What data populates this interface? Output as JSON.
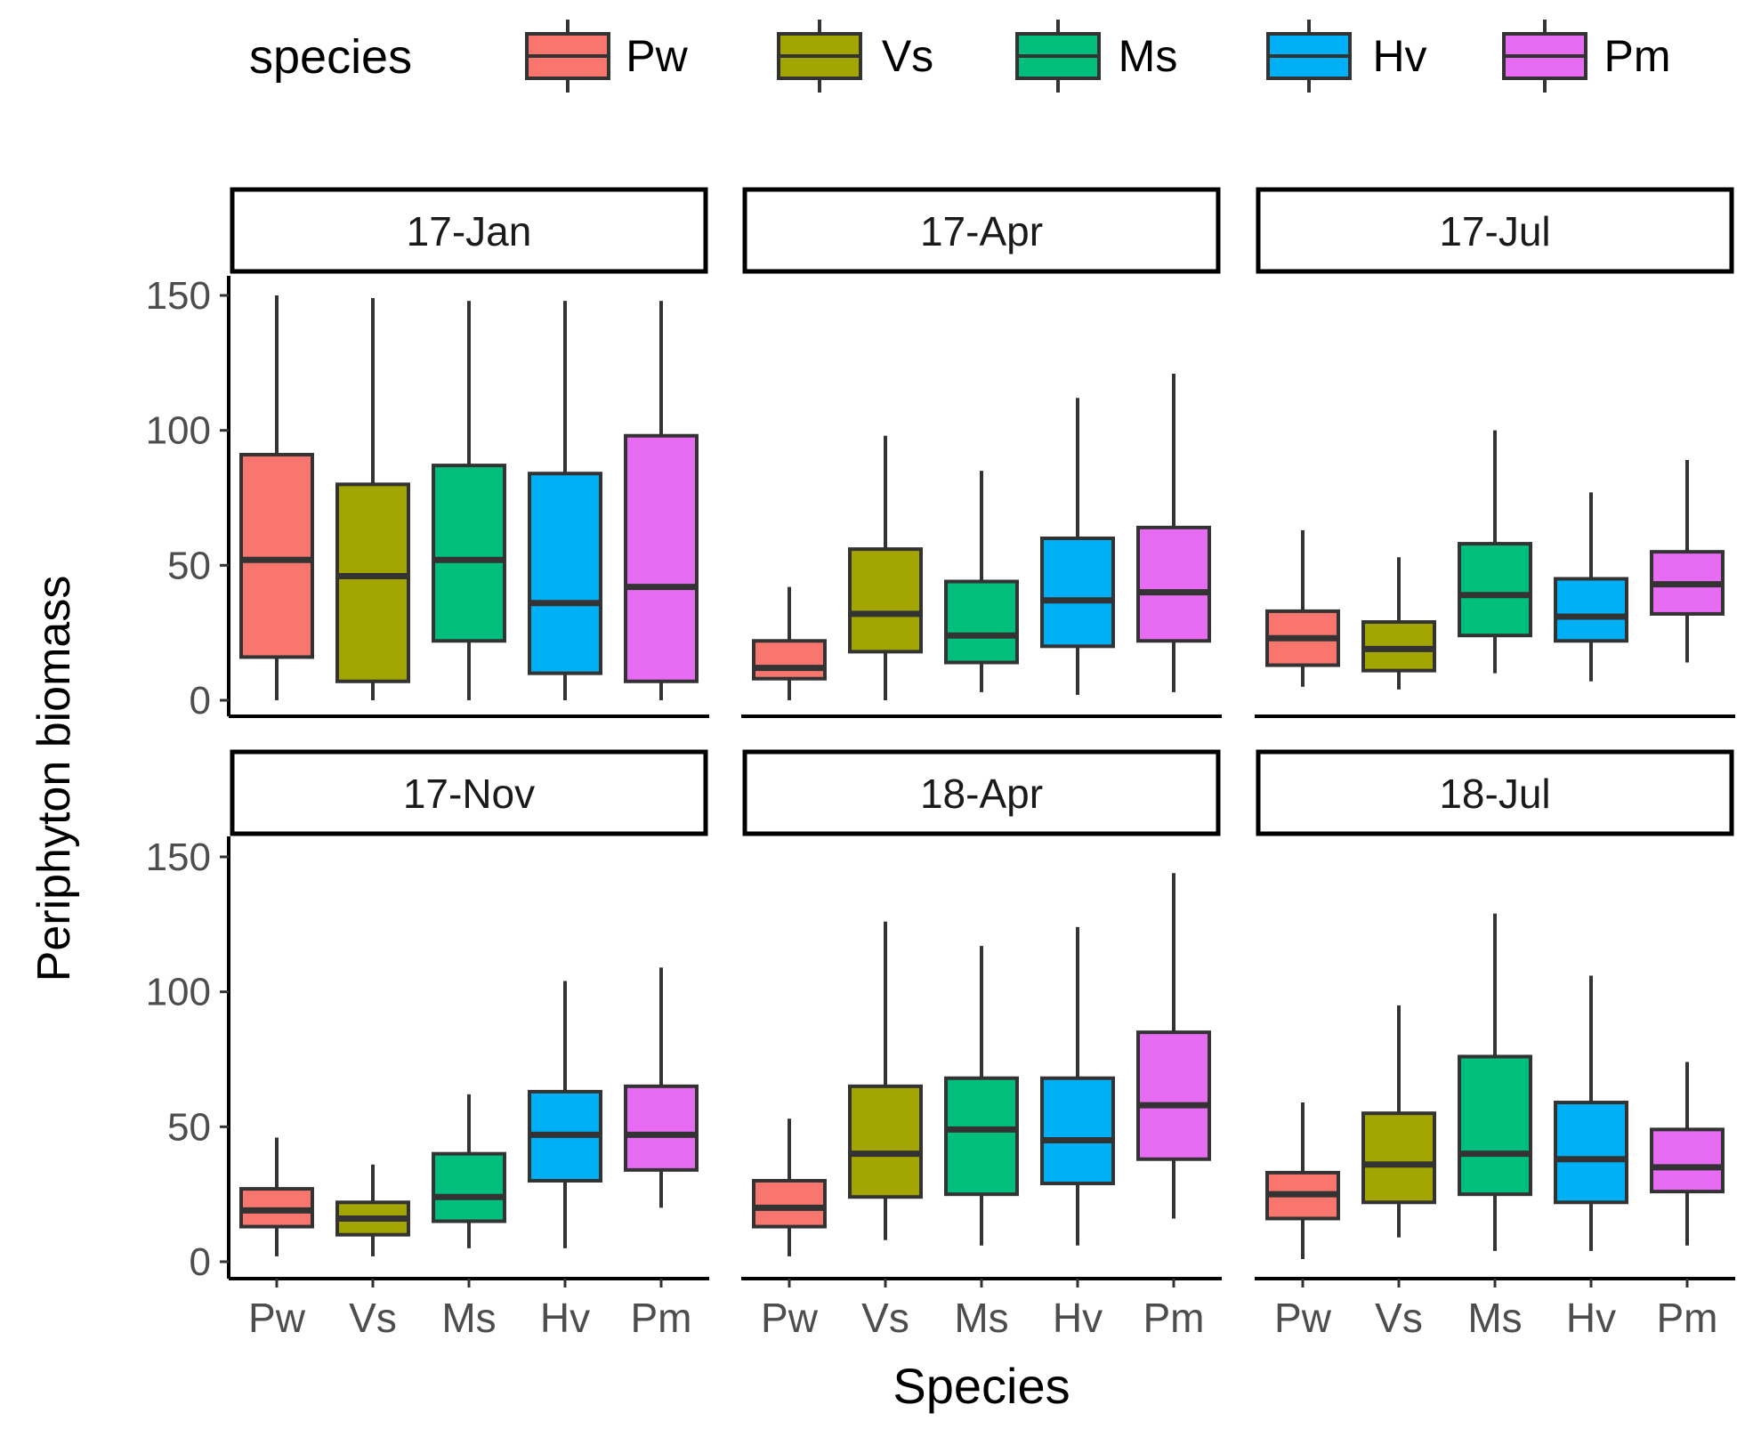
{
  "chart_data": {
    "type": "boxplot",
    "xlabel": "Species",
    "ylabel": "Periphyton biomass",
    "ylim": [
      0,
      150
    ],
    "yticks": [
      0,
      50,
      100,
      150
    ],
    "legend": {
      "title": "species",
      "position": "top",
      "entries": [
        "Pw",
        "Vs",
        "Ms",
        "Hv",
        "Pm"
      ]
    },
    "categories": [
      "Pw",
      "Vs",
      "Ms",
      "Hv",
      "Pm"
    ],
    "colors": {
      "Pw": "#F8766D",
      "Vs": "#A3A500",
      "Ms": "#00BF7D",
      "Hv": "#00B0F6",
      "Pm": "#E76BF3"
    },
    "panels": [
      {
        "title": "17-Jan",
        "boxes": [
          {
            "species": "Pw",
            "min": 0,
            "q1": 16,
            "median": 52,
            "q3": 91,
            "max": 150
          },
          {
            "species": "Vs",
            "min": 0,
            "q1": 7,
            "median": 46,
            "q3": 80,
            "max": 149
          },
          {
            "species": "Ms",
            "min": 0,
            "q1": 22,
            "median": 52,
            "q3": 87,
            "max": 148
          },
          {
            "species": "Hv",
            "min": 0,
            "q1": 10,
            "median": 36,
            "q3": 84,
            "max": 148
          },
          {
            "species": "Pm",
            "min": 0,
            "q1": 7,
            "median": 42,
            "q3": 98,
            "max": 148
          }
        ]
      },
      {
        "title": "17-Apr",
        "boxes": [
          {
            "species": "Pw",
            "min": 0,
            "q1": 8,
            "median": 12,
            "q3": 22,
            "max": 42
          },
          {
            "species": "Vs",
            "min": 0,
            "q1": 18,
            "median": 32,
            "q3": 56,
            "max": 98
          },
          {
            "species": "Ms",
            "min": 3,
            "q1": 14,
            "median": 24,
            "q3": 44,
            "max": 85
          },
          {
            "species": "Hv",
            "min": 2,
            "q1": 20,
            "median": 37,
            "q3": 60,
            "max": 112
          },
          {
            "species": "Pm",
            "min": 3,
            "q1": 22,
            "median": 40,
            "q3": 64,
            "max": 121
          }
        ]
      },
      {
        "title": "17-Jul",
        "boxes": [
          {
            "species": "Pw",
            "min": 5,
            "q1": 13,
            "median": 23,
            "q3": 33,
            "max": 63
          },
          {
            "species": "Vs",
            "min": 4,
            "q1": 11,
            "median": 19,
            "q3": 29,
            "max": 53
          },
          {
            "species": "Ms",
            "min": 10,
            "q1": 24,
            "median": 39,
            "q3": 58,
            "max": 100
          },
          {
            "species": "Hv",
            "min": 7,
            "q1": 22,
            "median": 31,
            "q3": 45,
            "max": 77
          },
          {
            "species": "Pm",
            "min": 14,
            "q1": 32,
            "median": 43,
            "q3": 55,
            "max": 89
          }
        ]
      },
      {
        "title": "17-Nov",
        "boxes": [
          {
            "species": "Pw",
            "min": 2,
            "q1": 13,
            "median": 19,
            "q3": 27,
            "max": 46
          },
          {
            "species": "Vs",
            "min": 2,
            "q1": 10,
            "median": 16,
            "q3": 22,
            "max": 36
          },
          {
            "species": "Ms",
            "min": 5,
            "q1": 15,
            "median": 24,
            "q3": 40,
            "max": 62
          },
          {
            "species": "Hv",
            "min": 5,
            "q1": 30,
            "median": 47,
            "q3": 63,
            "max": 104
          },
          {
            "species": "Pm",
            "min": 20,
            "q1": 34,
            "median": 47,
            "q3": 65,
            "max": 109
          }
        ]
      },
      {
        "title": "18-Apr",
        "boxes": [
          {
            "species": "Pw",
            "min": 2,
            "q1": 13,
            "median": 20,
            "q3": 30,
            "max": 53
          },
          {
            "species": "Vs",
            "min": 8,
            "q1": 24,
            "median": 40,
            "q3": 65,
            "max": 126
          },
          {
            "species": "Ms",
            "min": 6,
            "q1": 25,
            "median": 49,
            "q3": 68,
            "max": 117
          },
          {
            "species": "Hv",
            "min": 6,
            "q1": 29,
            "median": 45,
            "q3": 68,
            "max": 124
          },
          {
            "species": "Pm",
            "min": 16,
            "q1": 38,
            "median": 58,
            "q3": 85,
            "max": 144
          }
        ]
      },
      {
        "title": "18-Jul",
        "boxes": [
          {
            "species": "Pw",
            "min": 1,
            "q1": 16,
            "median": 25,
            "q3": 33,
            "max": 59
          },
          {
            "species": "Vs",
            "min": 9,
            "q1": 22,
            "median": 36,
            "q3": 55,
            "max": 95
          },
          {
            "species": "Ms",
            "min": 4,
            "q1": 25,
            "median": 40,
            "q3": 76,
            "max": 129
          },
          {
            "species": "Hv",
            "min": 4,
            "q1": 22,
            "median": 38,
            "q3": 59,
            "max": 106
          },
          {
            "species": "Pm",
            "min": 6,
            "q1": 26,
            "median": 35,
            "q3": 49,
            "max": 74
          }
        ]
      }
    ]
  }
}
